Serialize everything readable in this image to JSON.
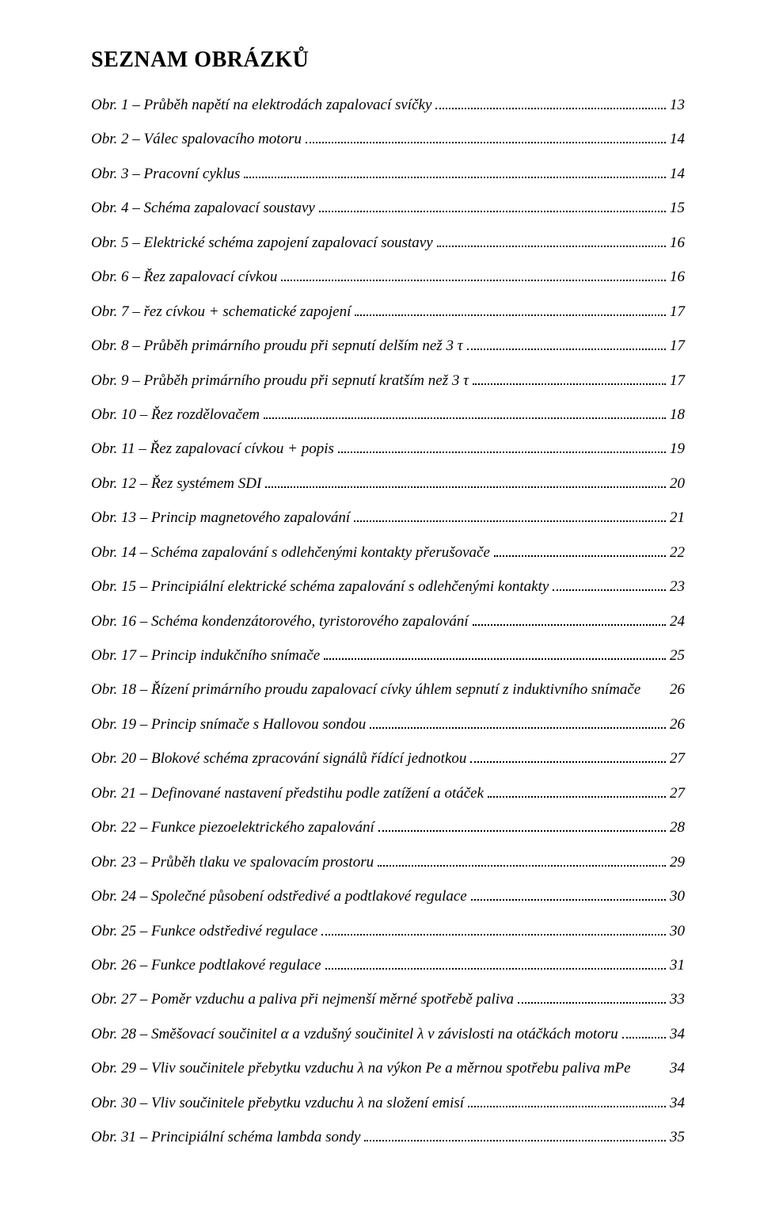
{
  "title": "SEZNAM OBRÁZKŮ",
  "entries": [
    {
      "label": "Obr. 1 – Průběh napětí na elektrodách zapalovací svíčky",
      "page": "13",
      "dots": true
    },
    {
      "label": "Obr. 2 – Válec spalovacího motoru",
      "page": "14",
      "dots": true
    },
    {
      "label": "Obr. 3 – Pracovní cyklus",
      "page": "14",
      "dots": true
    },
    {
      "label": "Obr. 4 – Schéma zapalovací soustavy",
      "page": "15",
      "dots": true
    },
    {
      "label": "Obr. 5 – Elektrické schéma zapojení zapalovací soustavy",
      "page": "16",
      "dots": true
    },
    {
      "label": "Obr. 6 – Řez zapalovací cívkou",
      "page": "16",
      "dots": true
    },
    {
      "label": "Obr. 7 – řez cívkou + schematické zapojení",
      "page": "17",
      "dots": true
    },
    {
      "label": "Obr. 8 – Průběh primárního proudu při sepnutí delším než 3 τ",
      "page": "17",
      "dots": true
    },
    {
      "label": "Obr. 9 – Průběh primárního proudu při sepnutí kratším než 3 τ",
      "page": "17",
      "dots": true
    },
    {
      "label": "Obr. 10 – Řez rozdělovačem",
      "page": "18",
      "dots": true
    },
    {
      "label": "Obr. 11 – Řez zapalovací cívkou + popis",
      "page": "19",
      "dots": true
    },
    {
      "label": "Obr. 12 – Řez systémem SDI",
      "page": "20",
      "dots": true
    },
    {
      "label": "Obr. 13 – Princip magnetového zapalování",
      "page": "21",
      "dots": true
    },
    {
      "label": "Obr. 14 – Schéma zapalování s odlehčenými kontakty přerušovače",
      "page": "22",
      "dots": true
    },
    {
      "label": "Obr. 15 – Principiální elektrické schéma zapalování s odlehčenými kontakty",
      "page": "23",
      "dots": true
    },
    {
      "label": "Obr. 16 – Schéma kondenzátorového, tyristorového zapalování",
      "page": "24",
      "dots": true
    },
    {
      "label": "Obr. 17 – Princip indukčního snímače",
      "page": "25",
      "dots": true
    },
    {
      "label": "Obr. 18 – Řízení primárního proudu zapalovací cívky úhlem sepnutí z induktivního snímače",
      "page": "26",
      "dots": false
    },
    {
      "label": "Obr. 19 – Princip snímače s Hallovou sondou",
      "page": "26",
      "dots": true
    },
    {
      "label": "Obr. 20 – Blokové schéma zpracování signálů řídící jednotkou",
      "page": "27",
      "dots": true
    },
    {
      "label": "Obr. 21 – Definované nastavení předstihu podle zatížení a otáček",
      "page": "27",
      "dots": true
    },
    {
      "label": "Obr. 22 – Funkce piezoelektrického zapalování",
      "page": "28",
      "dots": true
    },
    {
      "label": "Obr. 23 – Průběh tlaku ve spalovacím prostoru",
      "page": "29",
      "dots": true
    },
    {
      "label": "Obr. 24 – Společné působení odstředivé a podtlakové regulace",
      "page": "30",
      "dots": true
    },
    {
      "label": "Obr. 25 – Funkce odstředivé regulace",
      "page": "30",
      "dots": true
    },
    {
      "label": "Obr. 26 – Funkce podtlakové regulace",
      "page": "31",
      "dots": true
    },
    {
      "label": "Obr. 27 – Poměr vzduchu a paliva při nejmenší měrné spotřebě paliva",
      "page": "33",
      "dots": true
    },
    {
      "label": "Obr. 28 – Směšovací součinitel α a vzdušný součinitel <span class=\"lambda\">λ</span>  v závislosti na otáčkách motoru",
      "page": "34",
      "dots": true
    },
    {
      "label": "Obr. 29 – Vliv součinitele přebytku vzduchu <span class=\"lambda\">λ</span>  na výkon Pe a měrnou spotřebu paliva mPe",
      "page": "34",
      "dots": false
    },
    {
      "label": "Obr. 30 – Vliv součinitele přebytku vzduchu <span class=\"lambda\">λ</span>  na složení emisí",
      "page": "34",
      "dots": true
    },
    {
      "label": "Obr. 31 – Principiální schéma lambda sondy",
      "page": "35",
      "dots": true
    }
  ]
}
